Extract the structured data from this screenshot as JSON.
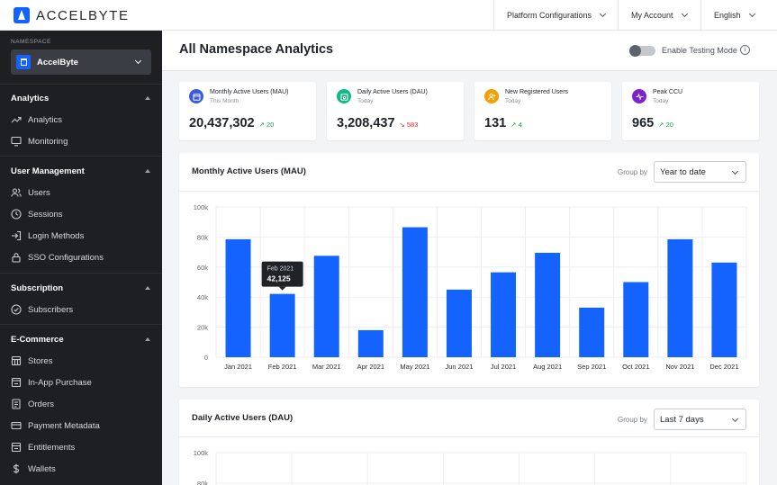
{
  "header": {
    "logo_text": "ACCELBYTE",
    "menus": [
      {
        "label": "Platform Configurations"
      },
      {
        "label": "My Account"
      },
      {
        "label": "English"
      }
    ]
  },
  "sidebar": {
    "namespace_label": "NAMESPACE",
    "namespace_value": "AccelByte",
    "sections": [
      {
        "title": "Analytics",
        "items": [
          {
            "label": "Analytics",
            "icon": "trending-up-icon"
          },
          {
            "label": "Monitoring",
            "icon": "monitor-icon"
          }
        ]
      },
      {
        "title": "User Management",
        "items": [
          {
            "label": "Users",
            "icon": "users-icon"
          },
          {
            "label": "Sessions",
            "icon": "clock-icon"
          },
          {
            "label": "Login Methods",
            "icon": "login-icon"
          },
          {
            "label": "SSO Configurations",
            "icon": "lock-icon"
          }
        ]
      },
      {
        "title": "Subscription",
        "items": [
          {
            "label": "Subscribers",
            "icon": "check-circle-icon"
          }
        ]
      },
      {
        "title": "E-Commerce",
        "items": [
          {
            "label": "Stores",
            "icon": "store-icon"
          },
          {
            "label": "In-App Purchase",
            "icon": "purchase-icon"
          },
          {
            "label": "Orders",
            "icon": "orders-icon"
          },
          {
            "label": "Payment Metadata",
            "icon": "payment-icon"
          },
          {
            "label": "Entitlements",
            "icon": "entitlements-icon"
          },
          {
            "label": "Wallets",
            "icon": "dollar-icon"
          }
        ]
      }
    ]
  },
  "page": {
    "title": "All Namespace Analytics",
    "testing_mode_label": "Enable Testing Mode",
    "info_glyph": "i"
  },
  "stats": [
    {
      "title": "Monthly Active Users (MAU)",
      "sub": "This Month",
      "value": "20,437,302",
      "delta": "↗ 20",
      "trend": "up",
      "color": "#3b5bdb"
    },
    {
      "title": "Daily Active Users (DAU)",
      "sub": "Today",
      "value": "3,208,437",
      "delta": "↘ 583",
      "trend": "down",
      "color": "#12b886"
    },
    {
      "title": "New Registered Users",
      "sub": "Today",
      "value": "131",
      "delta": "↗ 4",
      "trend": "up",
      "color": "#f59f00"
    },
    {
      "title": "Peak CCU",
      "sub": "Today",
      "value": "965",
      "delta": "↗ 20",
      "trend": "up",
      "color": "#7e22ce"
    }
  ],
  "mau_card": {
    "title": "Monthly Active Users (MAU)",
    "group_by_label": "Group by",
    "group_by_value": "Year to date"
  },
  "dau_card": {
    "title": "Daily Active Users (DAU)",
    "group_by_label": "Group by",
    "group_by_value": "Last 7 days"
  },
  "colors": {
    "accent": "#1463ff",
    "sidebar": "#1d1f22"
  },
  "chart_data": [
    {
      "type": "bar",
      "title": "Monthly Active Users (MAU)",
      "categories": [
        "Jan 2021",
        "Feb 2021",
        "Mar 2021",
        "Apr 2021",
        "May 2021",
        "Jun 2021",
        "Jul 2021",
        "Aug 2021",
        "Sep 2021",
        "Oct 2021",
        "Nov 2021",
        "Dec 2021"
      ],
      "values": [
        78500,
        42125,
        67500,
        18000,
        86500,
        45000,
        56500,
        69500,
        33000,
        50000,
        78500,
        63000
      ],
      "ylim": [
        0,
        100000
      ],
      "yticks": [
        "0",
        "20k",
        "40k",
        "60k",
        "80k",
        "100k"
      ],
      "tooltip": {
        "label": "Feb 2021",
        "value": "42,125"
      },
      "grid": true
    },
    {
      "type": "bar",
      "title": "Daily Active Users (DAU)",
      "categories": [],
      "values": [],
      "ylim": [
        0,
        100000
      ],
      "yticks": [
        "100k",
        "80k"
      ],
      "grid": true
    }
  ]
}
